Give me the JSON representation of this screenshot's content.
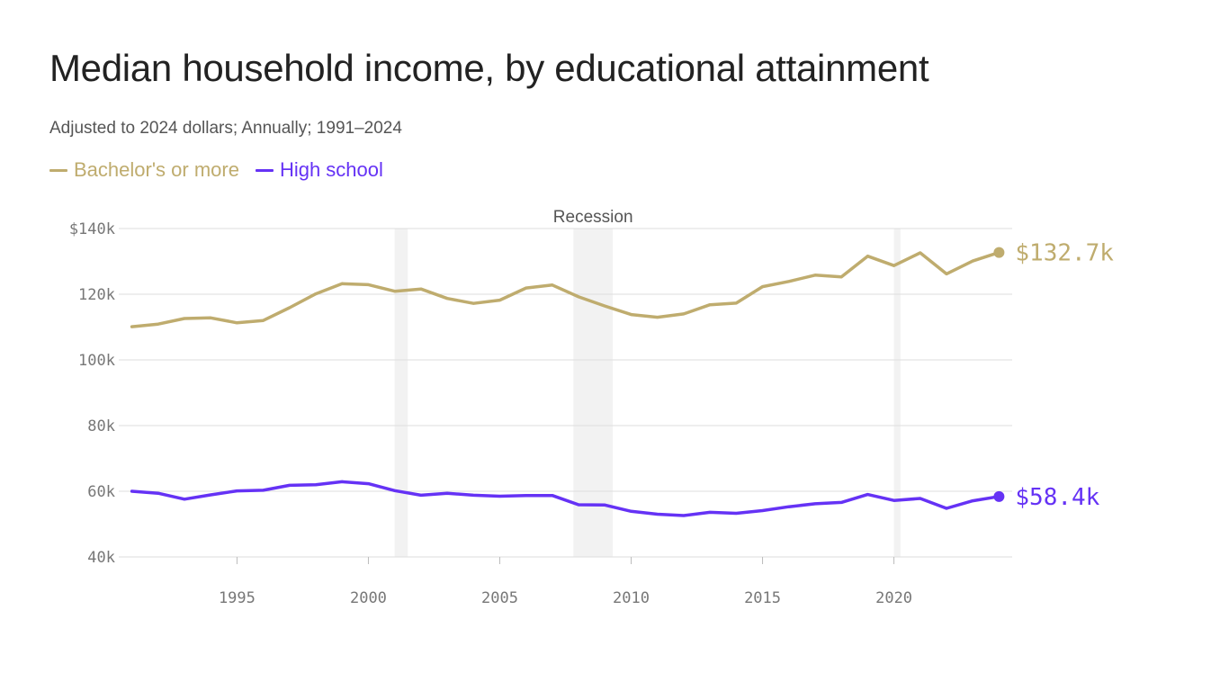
{
  "header": {
    "title": "Median household income, by educational attainment",
    "subtitle": "Adjusted to 2024 dollars; Annually; 1991–2024"
  },
  "legend": {
    "items": [
      {
        "label": "Bachelor's or more",
        "color": "#bfac6e"
      },
      {
        "label": "High school",
        "color": "#6532f5"
      }
    ]
  },
  "chart_data": {
    "type": "line",
    "title": "Median household income, by educational attainment",
    "subtitle": "Adjusted to 2024 dollars; Annually; 1991–2024",
    "xlabel": "",
    "ylabel": "",
    "xlim": [
      1990.5,
      2024.5
    ],
    "ylim": [
      40000,
      140000
    ],
    "grid": true,
    "legend_position": "top-left",
    "x": [
      1991,
      1992,
      1993,
      1994,
      1995,
      1996,
      1997,
      1998,
      1999,
      2000,
      2001,
      2002,
      2003,
      2004,
      2005,
      2006,
      2007,
      2008,
      2009,
      2010,
      2011,
      2012,
      2013,
      2014,
      2015,
      2016,
      2017,
      2018,
      2019,
      2020,
      2021,
      2022,
      2023,
      2024
    ],
    "x_ticks": [
      {
        "value": 1995,
        "label": "1995"
      },
      {
        "value": 2000,
        "label": "2000"
      },
      {
        "value": 2005,
        "label": "2005"
      },
      {
        "value": 2010,
        "label": "2010"
      },
      {
        "value": 2015,
        "label": "2015"
      },
      {
        "value": 2020,
        "label": "2020"
      }
    ],
    "y_ticks": [
      {
        "value": 140000,
        "label": "$140k"
      },
      {
        "value": 120000,
        "label": "120k"
      },
      {
        "value": 100000,
        "label": "100k"
      },
      {
        "value": 80000,
        "label": "80k"
      },
      {
        "value": 60000,
        "label": "60k"
      },
      {
        "value": 40000,
        "label": "40k"
      }
    ],
    "recessions": [
      {
        "start": 2001.0,
        "end": 2001.5
      },
      {
        "start": 2007.8,
        "end": 2009.3
      },
      {
        "start": 2020.0,
        "end": 2020.25
      }
    ],
    "recession_label": "Recession",
    "series": [
      {
        "name": "Bachelor's or more",
        "color": "#bfac6e",
        "end_label": "$132.7k",
        "values": [
          110100,
          110900,
          112600,
          112800,
          111300,
          112000,
          115900,
          120100,
          123200,
          122900,
          120900,
          121600,
          118700,
          117200,
          118200,
          121900,
          122800,
          119200,
          116400,
          113800,
          113000,
          114000,
          116800,
          117300,
          122300,
          123900,
          125800,
          125300,
          131600,
          128700,
          132600,
          126200,
          130100,
          132700
        ]
      },
      {
        "name": "High school",
        "color": "#6532f5",
        "end_label": "$58.4k",
        "values": [
          60000,
          59400,
          57600,
          58900,
          60100,
          60300,
          61800,
          62000,
          62900,
          62300,
          60200,
          58800,
          59400,
          58800,
          58500,
          58700,
          58700,
          55900,
          55800,
          53900,
          53000,
          52600,
          53600,
          53300,
          54100,
          55300,
          56200,
          56600,
          59000,
          57200,
          57800,
          54800,
          57100,
          58400
        ]
      }
    ]
  }
}
